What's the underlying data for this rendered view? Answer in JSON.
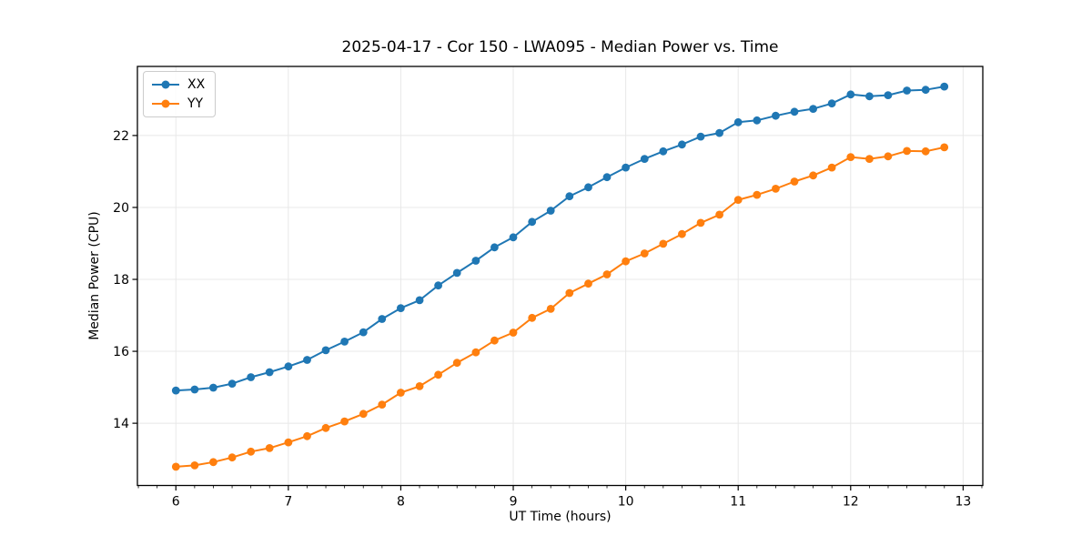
{
  "chart_data": {
    "type": "line",
    "title": "2025-04-17 - Cor 150 - LWA095 - Median Power vs. Time",
    "xlabel": "UT Time (hours)",
    "ylabel": "Median Power (CPU)",
    "xlim": [
      5.658,
      13.175
    ],
    "ylim": [
      12.27,
      23.92
    ],
    "x_ticks": [
      6,
      7,
      8,
      9,
      10,
      11,
      12,
      13
    ],
    "y_ticks": [
      14,
      16,
      18,
      20,
      22
    ],
    "x_minor_step": 0.166667,
    "grid": true,
    "grid_color": "#e8e8e8",
    "spine_color": "#000000",
    "legend": {
      "position": "upper left",
      "entries": [
        "XX",
        "YY"
      ]
    },
    "x": [
      6.0,
      6.167,
      6.333,
      6.5,
      6.667,
      6.833,
      7.0,
      7.167,
      7.333,
      7.5,
      7.667,
      7.833,
      8.0,
      8.167,
      8.333,
      8.5,
      8.667,
      8.833,
      9.0,
      9.167,
      9.333,
      9.5,
      9.667,
      9.833,
      10.0,
      10.167,
      10.333,
      10.5,
      10.667,
      10.833,
      11.0,
      11.167,
      11.333,
      11.5,
      11.667,
      11.833,
      12.0,
      12.167,
      12.333,
      12.5,
      12.667,
      12.833
    ],
    "series": [
      {
        "name": "XX",
        "color": "#1f77b4",
        "values": [
          14.91,
          14.94,
          14.99,
          15.1,
          15.28,
          15.42,
          15.58,
          15.76,
          16.03,
          16.27,
          16.53,
          16.9,
          17.2,
          17.42,
          17.83,
          18.18,
          18.52,
          18.89,
          19.17,
          19.6,
          19.91,
          20.31,
          20.56,
          20.84,
          21.11,
          21.35,
          21.56,
          21.75,
          21.97,
          22.07,
          22.37,
          22.42,
          22.55,
          22.66,
          22.74,
          22.89,
          23.14,
          23.09,
          23.12,
          23.25,
          23.27,
          23.36
        ]
      },
      {
        "name": "YY",
        "color": "#ff7f0e",
        "values": [
          12.79,
          12.83,
          12.92,
          13.05,
          13.21,
          13.31,
          13.47,
          13.64,
          13.87,
          14.05,
          14.26,
          14.52,
          14.85,
          15.03,
          15.35,
          15.68,
          15.97,
          16.3,
          16.52,
          16.93,
          17.18,
          17.62,
          17.88,
          18.14,
          18.5,
          18.72,
          18.99,
          19.26,
          19.57,
          19.8,
          20.21,
          20.35,
          20.52,
          20.72,
          20.89,
          21.11,
          21.4,
          21.35,
          21.42,
          21.57,
          21.56,
          21.67
        ]
      }
    ]
  }
}
